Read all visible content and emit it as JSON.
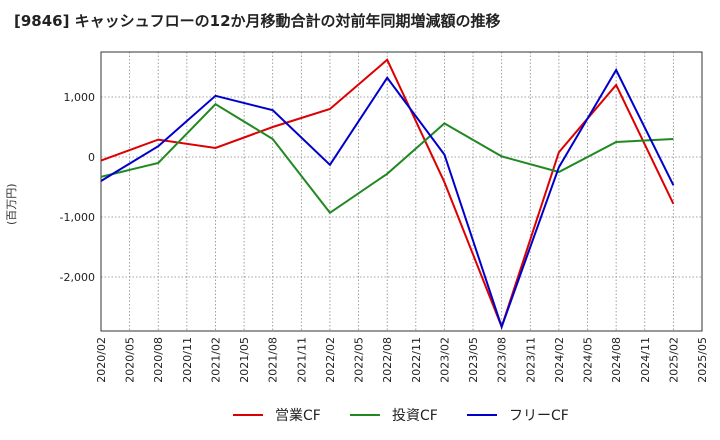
{
  "chart_data": {
    "type": "line",
    "title": "[9846]  キャッシュフローの12か月移動合計の対前年同期増減額の推移",
    "ylabel": "(百万円)",
    "xlabel": "",
    "x": [
      "2020/02",
      "2020/05",
      "2020/08",
      "2020/11",
      "2021/02",
      "2021/05",
      "2021/08",
      "2021/11",
      "2022/02",
      "2022/05",
      "2022/08",
      "2022/11",
      "2023/02",
      "2023/05",
      "2023/08",
      "2023/11",
      "2024/02",
      "2024/05",
      "2024/08",
      "2024/11",
      "2025/02",
      "2025/05"
    ],
    "ylim": [
      -2900,
      1750
    ],
    "yticks": [
      1000,
      0,
      -1000,
      -2000
    ],
    "ytick_labels": [
      "1,000",
      "0",
      "-1,000",
      "-2,000"
    ],
    "grid": true,
    "legend_position": "bottom",
    "series": [
      {
        "name": "営業CF",
        "color": "#dd0000",
        "points": [
          [
            "2020/02",
            -60
          ],
          [
            "2020/08",
            290
          ],
          [
            "2021/02",
            150
          ],
          [
            "2021/08",
            500
          ],
          [
            "2022/02",
            800
          ],
          [
            "2022/08",
            1620
          ],
          [
            "2023/02",
            -420
          ],
          [
            "2023/08",
            -2830
          ],
          [
            "2024/02",
            80
          ],
          [
            "2024/08",
            1200
          ],
          [
            "2025/02",
            -780
          ]
        ]
      },
      {
        "name": "投資CF",
        "color": "#228822",
        "points": [
          [
            "2020/02",
            -330
          ],
          [
            "2020/08",
            -100
          ],
          [
            "2021/02",
            880
          ],
          [
            "2021/08",
            300
          ],
          [
            "2022/02",
            -930
          ],
          [
            "2022/08",
            -280
          ],
          [
            "2023/02",
            560
          ],
          [
            "2023/08",
            10
          ],
          [
            "2024/02",
            -250
          ],
          [
            "2024/08",
            250
          ],
          [
            "2025/02",
            300
          ]
        ]
      },
      {
        "name": "フリーCF",
        "color": "#0000cc",
        "points": [
          [
            "2020/02",
            -400
          ],
          [
            "2020/08",
            180
          ],
          [
            "2021/02",
            1020
          ],
          [
            "2021/08",
            780
          ],
          [
            "2022/02",
            -130
          ],
          [
            "2022/08",
            1320
          ],
          [
            "2023/02",
            40
          ],
          [
            "2023/08",
            -2830
          ],
          [
            "2024/02",
            -170
          ],
          [
            "2024/08",
            1450
          ],
          [
            "2025/02",
            -470
          ]
        ]
      }
    ]
  }
}
